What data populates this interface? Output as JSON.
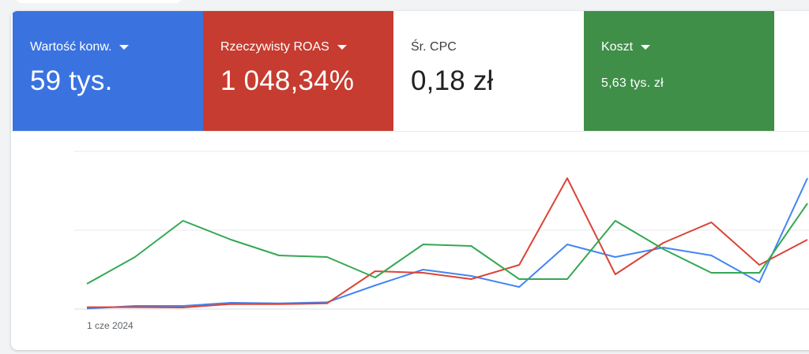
{
  "metrics": [
    {
      "label": "Wartość konw.",
      "value": "59 tys.",
      "has_dropdown": true,
      "color": "#3a73e0"
    },
    {
      "label": "Rzeczywisty ROAS",
      "value": "1 048,34%",
      "has_dropdown": true,
      "color": "#c63c30"
    },
    {
      "label": "Śr. CPC",
      "value": "0,18 zł",
      "has_dropdown": false,
      "color": "#ffffff"
    },
    {
      "label": "Koszt",
      "value": "5,63 tys. zł",
      "has_dropdown": true,
      "color": "#3f8f49"
    }
  ],
  "chart_data": {
    "type": "line",
    "x_first_label": "1 cze 2024",
    "grid": true,
    "series": [
      {
        "color": "#4285f4",
        "values": [
          0.3,
          2.0,
          2.0,
          4.0,
          3.6,
          4.3,
          15.0,
          25.0,
          21.0,
          14.0,
          41.0,
          33.0,
          39.0,
          34.0,
          17.0,
          83.0
        ]
      },
      {
        "color": "#db4437",
        "values": [
          1.2,
          1.2,
          1.0,
          3.2,
          3.1,
          3.6,
          24.0,
          23.0,
          19.0,
          28.0,
          83.0,
          22.0,
          42.0,
          55.0,
          28.0,
          44.0
        ]
      },
      {
        "color": "#34a853",
        "values": [
          16.0,
          33.0,
          56.0,
          44.0,
          34.0,
          33.0,
          20.0,
          41.0,
          40.0,
          19.0,
          19.0,
          56.0,
          38.0,
          23.0,
          23.0,
          67.0
        ]
      }
    ],
    "y_range": [
      0,
      100
    ]
  }
}
